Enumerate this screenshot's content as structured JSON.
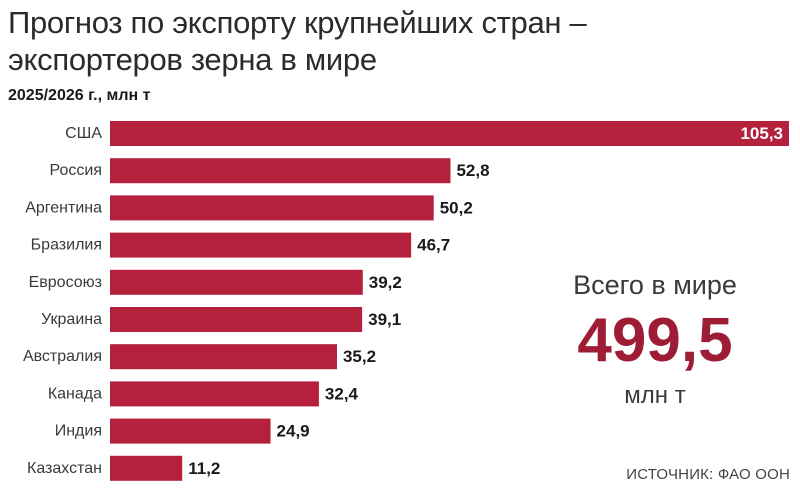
{
  "colors": {
    "bar": "#b5203c",
    "accent": "#9e1c35",
    "text": "#1a1a1a"
  },
  "header": {
    "title": "Прогноз по экспорту крупнейших стран – экспортеров зерна в мире",
    "subtitle": "2025/2026 г., млн т"
  },
  "total": {
    "label": "Всего в мире",
    "value": "499,5",
    "unit": "млн т"
  },
  "source": "ИСТОЧНИК: ФАО ООН",
  "chart_data": {
    "type": "bar",
    "orientation": "horizontal",
    "categories": [
      "США",
      "Россия",
      "Аргентина",
      "Бразилия",
      "Евросоюз",
      "Украина",
      "Австралия",
      "Канада",
      "Индия",
      "Казахстан"
    ],
    "values": [
      105.3,
      52.8,
      50.2,
      46.7,
      39.2,
      39.1,
      35.2,
      32.4,
      24.9,
      11.2
    ],
    "value_labels": [
      "105,3",
      "52,8",
      "50,2",
      "46,7",
      "39,2",
      "39,1",
      "35,2",
      "32,4",
      "24,9",
      "11,2"
    ],
    "title": "Прогноз по экспорту крупнейших стран – экспортеров зерна в мире",
    "subtitle": "2025/2026 г., млн т",
    "xlim": [
      0,
      105.3
    ],
    "grid": false,
    "legend": "none"
  }
}
